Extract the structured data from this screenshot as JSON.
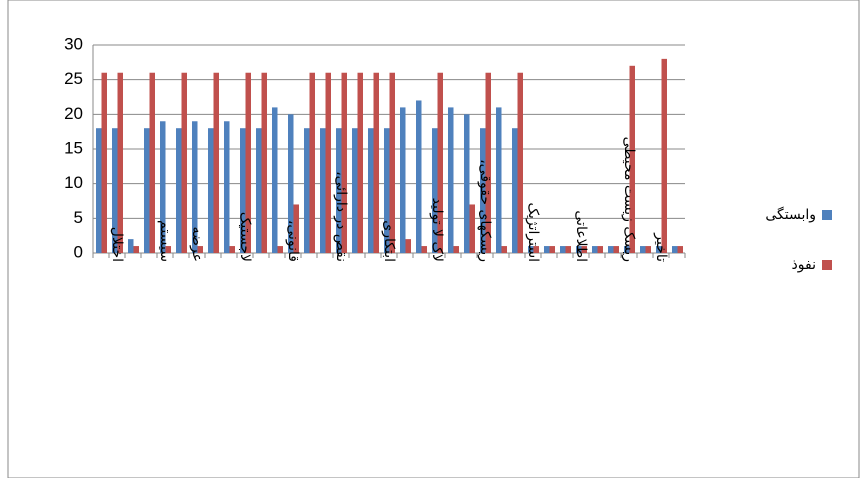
{
  "chart_data": {
    "type": "bar",
    "categories": [
      null,
      "اختلال",
      null,
      null,
      "سیستم",
      null,
      "عرضه",
      null,
      null,
      "لاجستیک",
      null,
      null,
      "قانونی،",
      null,
      null,
      "نقص در دارائی،",
      null,
      null,
      "ابتکاری",
      null,
      null,
      "لاک لا تولید",
      null,
      null,
      "ریسکهای حقوقی،",
      null,
      null,
      "استراتژیک",
      null,
      null,
      "اطلاعاتی",
      null,
      null,
      "ریسک زیست محیطی",
      null,
      "تاخیر",
      null
    ],
    "series": [
      {
        "name": "وابستگی",
        "color": "#4f81bd",
        "values": [
          18,
          18,
          2,
          18,
          19,
          18,
          19,
          18,
          19,
          18,
          18,
          21,
          20,
          18,
          18,
          18,
          18,
          18,
          18,
          21,
          22,
          18,
          21,
          20,
          18,
          21,
          18,
          1,
          1,
          1,
          1,
          1,
          1,
          1,
          1,
          1,
          1
        ]
      },
      {
        "name": "نفوذ",
        "color": "#c0504d",
        "values": [
          26,
          26,
          1,
          26,
          1,
          26,
          1,
          26,
          1,
          26,
          26,
          1,
          7,
          26,
          26,
          26,
          26,
          26,
          26,
          2,
          1,
          26,
          1,
          7,
          26,
          1,
          26,
          1,
          1,
          1,
          1,
          1,
          1,
          27,
          1,
          28,
          1
        ]
      }
    ],
    "ylim": [
      0,
      30
    ],
    "yticks": [
      0,
      5,
      10,
      15,
      20,
      25,
      30
    ],
    "grid": true,
    "legend": "right"
  }
}
